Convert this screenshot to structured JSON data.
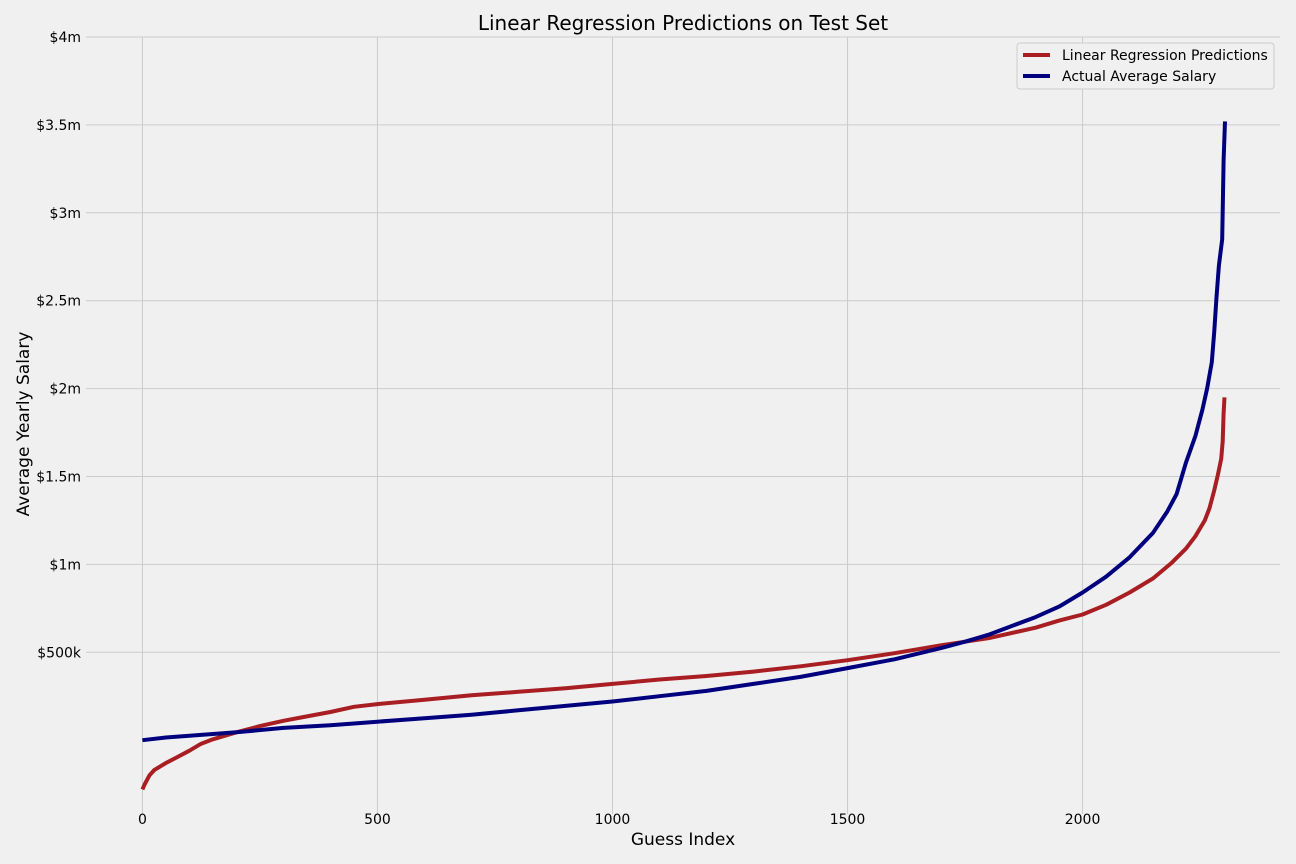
{
  "chart_data": {
    "type": "line",
    "title": "Linear Regression Predictions on Test Set",
    "xlabel": "Guess Index",
    "ylabel": "Average Yearly Salary",
    "xlim": [
      -120,
      2420
    ],
    "ylim": [
      -420000,
      4000000
    ],
    "x_ticks": [
      {
        "value": 0,
        "label": "0"
      },
      {
        "value": 500,
        "label": "500"
      },
      {
        "value": 1000,
        "label": "1000"
      },
      {
        "value": 1500,
        "label": "1500"
      },
      {
        "value": 2000,
        "label": "2000"
      }
    ],
    "y_ticks": [
      {
        "value": 500000,
        "label": "$500k"
      },
      {
        "value": 1000000,
        "label": "$1m"
      },
      {
        "value": 1500000,
        "label": "$1.5m"
      },
      {
        "value": 2000000,
        "label": "$2m"
      },
      {
        "value": 2500000,
        "label": "$2.5m"
      },
      {
        "value": 3000000,
        "label": "$3m"
      },
      {
        "value": 3500000,
        "label": "$3.5m"
      },
      {
        "value": 4000000,
        "label": "$4m"
      }
    ],
    "grid": true,
    "legend_position": "top-right",
    "series": [
      {
        "name": "Linear Regression Predictions",
        "color": "#a81e22",
        "points": [
          [
            0,
            -280000
          ],
          [
            5,
            -250000
          ],
          [
            15,
            -200000
          ],
          [
            25,
            -170000
          ],
          [
            50,
            -130000
          ],
          [
            75,
            -95000
          ],
          [
            100,
            -60000
          ],
          [
            125,
            -20000
          ],
          [
            150,
            5000
          ],
          [
            200,
            45000
          ],
          [
            250,
            80000
          ],
          [
            300,
            110000
          ],
          [
            350,
            135000
          ],
          [
            400,
            160000
          ],
          [
            450,
            190000
          ],
          [
            500,
            205000
          ],
          [
            600,
            230000
          ],
          [
            700,
            255000
          ],
          [
            800,
            275000
          ],
          [
            900,
            295000
          ],
          [
            1000,
            320000
          ],
          [
            1100,
            345000
          ],
          [
            1200,
            365000
          ],
          [
            1300,
            390000
          ],
          [
            1400,
            420000
          ],
          [
            1500,
            455000
          ],
          [
            1600,
            495000
          ],
          [
            1700,
            540000
          ],
          [
            1800,
            580000
          ],
          [
            1900,
            640000
          ],
          [
            1950,
            680000
          ],
          [
            2000,
            715000
          ],
          [
            2050,
            770000
          ],
          [
            2100,
            840000
          ],
          [
            2150,
            920000
          ],
          [
            2190,
            1010000
          ],
          [
            2220,
            1090000
          ],
          [
            2240,
            1160000
          ],
          [
            2260,
            1250000
          ],
          [
            2270,
            1320000
          ],
          [
            2280,
            1420000
          ],
          [
            2288,
            1510000
          ],
          [
            2295,
            1600000
          ],
          [
            2298,
            1700000
          ],
          [
            2300,
            1860000
          ],
          [
            2302,
            1950000
          ]
        ]
      },
      {
        "name": "Actual Average Salary",
        "color": "#00007f",
        "points": [
          [
            0,
            0
          ],
          [
            50,
            15000
          ],
          [
            100,
            25000
          ],
          [
            150,
            35000
          ],
          [
            200,
            45000
          ],
          [
            300,
            70000
          ],
          [
            400,
            85000
          ],
          [
            500,
            105000
          ],
          [
            600,
            125000
          ],
          [
            700,
            145000
          ],
          [
            800,
            170000
          ],
          [
            900,
            195000
          ],
          [
            1000,
            220000
          ],
          [
            1100,
            250000
          ],
          [
            1200,
            280000
          ],
          [
            1300,
            320000
          ],
          [
            1400,
            360000
          ],
          [
            1500,
            410000
          ],
          [
            1600,
            460000
          ],
          [
            1700,
            525000
          ],
          [
            1750,
            560000
          ],
          [
            1800,
            600000
          ],
          [
            1850,
            650000
          ],
          [
            1900,
            700000
          ],
          [
            1950,
            760000
          ],
          [
            2000,
            840000
          ],
          [
            2050,
            930000
          ],
          [
            2100,
            1040000
          ],
          [
            2150,
            1180000
          ],
          [
            2180,
            1300000
          ],
          [
            2200,
            1400000
          ],
          [
            2220,
            1580000
          ],
          [
            2240,
            1730000
          ],
          [
            2255,
            1880000
          ],
          [
            2265,
            2000000
          ],
          [
            2275,
            2150000
          ],
          [
            2280,
            2320000
          ],
          [
            2285,
            2520000
          ],
          [
            2290,
            2700000
          ],
          [
            2297,
            2850000
          ],
          [
            2300,
            3300000
          ],
          [
            2303,
            3520000
          ]
        ]
      }
    ]
  }
}
